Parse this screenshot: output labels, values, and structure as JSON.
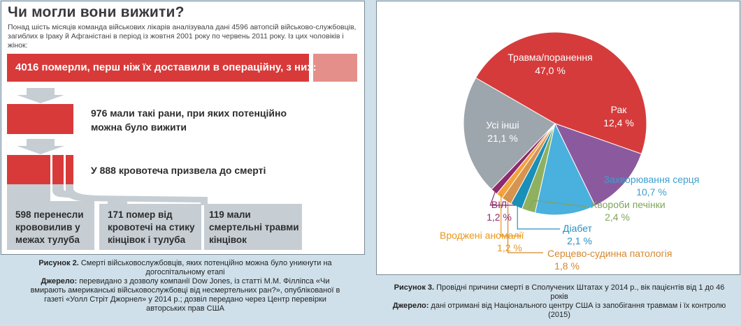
{
  "figure2": {
    "title": "Чи могли вони вижити?",
    "intro": "Понад шість місяців команда військових лікарів аналізувала дані 4596 автопсій військово-службовців, загиблих в Іраку й Афганістані в період із жовтня 2001 року по червень 2011 року. Із цих чоловіків і жінок:",
    "bar_main": "4016 померли, перш ніж їх доставили в операційну, з них:",
    "line_976": "976 мали такі рани, при яких потенційно можна було вижити",
    "line_888": "У 888 кровотеча призвела до смерті",
    "box_598": "598 перенесли крововилив у межах тулуба",
    "box_171": "171 помер від кровотечі на стику кінцівок і тулуба",
    "box_119": "119 мали смертельні травми кінцівок",
    "caption_label": "Рисунок 2.",
    "caption_text": "Смерті військовослужбовців, яких потенційно можна було уникнути на догоспітальному етапі",
    "source_label": "Джерело:",
    "source_text": "перевидано з дозволу компанії Dow Jones, із статті М.М. Філліпса «Чи вмирають американські військовослужбовці від несмертельних ран?», опублікованої в газеті «Уолл Стріт Джорнел» у 2014 р.; дозвіл передано через Центр перевірки авторських прав США"
  },
  "figure3": {
    "caption_label": "Рисунок 3.",
    "caption_text": "Провідні причини смерті в Сполучених Штатах у 2014 р., вік пацієнтів від 1 до 46 років",
    "source_label": "Джерело:",
    "source_text": "дані отримані від Національного центру США із запобігання травмам і їх контролю (2015)"
  },
  "chart_data": {
    "type": "pie",
    "slices": [
      {
        "label": "Травма/поранення",
        "value": 47.0,
        "value_label": "47,0 %",
        "color": "#d63b3b"
      },
      {
        "label": "Рак",
        "value": 12.4,
        "value_label": "12,4 %",
        "color": "#8b5a9e"
      },
      {
        "label": "Захворювання серця",
        "value": 10.7,
        "value_label": "10,7 %",
        "color": "#4ab0dd"
      },
      {
        "label": "Хвороби печінки",
        "value": 2.4,
        "value_label": "2,4 %",
        "color": "#8fb15f"
      },
      {
        "label": "Діабет",
        "value": 2.1,
        "value_label": "2,1 %",
        "color": "#1a8fb8"
      },
      {
        "label": "Серцево-судинна патологія",
        "value": 1.8,
        "value_label": "1,8 %",
        "color": "#d8944e"
      },
      {
        "label": "Вроджені аномалії",
        "value": 1.2,
        "value_label": "1,2 %",
        "color": "#f2a33a"
      },
      {
        "label": "ВІЛ",
        "value": 1.2,
        "value_label": "1,2 %",
        "color": "#8e2a6e"
      },
      {
        "label": "Усі інші",
        "value": 21.1,
        "value_label": "21,1 %",
        "color": "#9ea6ad"
      }
    ],
    "label_colors": {
      "inside": "#ffffff",
      "heart": "#3c9fd0",
      "liver": "#7fa45a",
      "diabetes": "#2a8fc0",
      "cardio": "#d5872f",
      "congenital": "#e9961a",
      "hiv": "#8e2a6e"
    }
  }
}
